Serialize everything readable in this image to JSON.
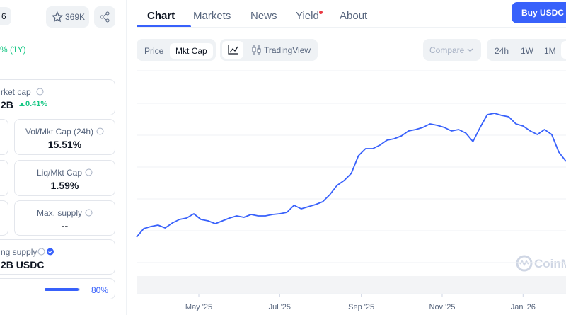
{
  "header": {
    "rank_partial": "6",
    "watchlist_count": "369K"
  },
  "left": {
    "change_period": "% (1Y)",
    "market_cap": {
      "label": "rket cap",
      "value": "2B",
      "change": "0.41%"
    },
    "stats": [
      {
        "label": "Vol/Mkt Cap (24h)",
        "value": "15.51%"
      },
      {
        "label": "Liq/Mkt Cap",
        "value": "1.59%"
      },
      {
        "label": "Max. supply",
        "value": "--"
      }
    ],
    "supply": {
      "label": "ng supply",
      "value": "2B USDC"
    },
    "progress": {
      "label": "80%"
    }
  },
  "tabs": [
    "Chart",
    "Markets",
    "News",
    "Yield",
    "About"
  ],
  "buy_button": "Buy USDC",
  "toolbar": {
    "metrics": [
      "Price",
      "Mkt Cap"
    ],
    "tradingview": "TradingView",
    "compare": "Compare",
    "ranges": [
      "24h",
      "1W",
      "1M"
    ]
  },
  "watermark": "CoinM",
  "chart_data": {
    "type": "line",
    "x": [
      0,
      1,
      2,
      3,
      4,
      5,
      6,
      7,
      8,
      9,
      10,
      11,
      12,
      13,
      14,
      15,
      16,
      17,
      18,
      19,
      20,
      21,
      22,
      23,
      24,
      25,
      26,
      27,
      28,
      29,
      30,
      31,
      32,
      33,
      34,
      35,
      36,
      37,
      38,
      39,
      40,
      41,
      42,
      43,
      44,
      45,
      46,
      47,
      48,
      49,
      50,
      51,
      52,
      53,
      54,
      55,
      56,
      57,
      58,
      59,
      60
    ],
    "series": [
      {
        "color": "#3861fb",
        "values": [
          80,
          92,
          95,
          97,
          93,
          100,
          105,
          107,
          113,
          105,
          103,
          99,
          103,
          107,
          110,
          108,
          112,
          110,
          110,
          112,
          113,
          115,
          125,
          120,
          123,
          126,
          130,
          140,
          153,
          160,
          170,
          195,
          205,
          205,
          210,
          217,
          219,
          223,
          230,
          232,
          235,
          240,
          238,
          235,
          230,
          232,
          227,
          215,
          235,
          253,
          255,
          252,
          250,
          240,
          237,
          230,
          225,
          232,
          225,
          200,
          187
        ]
      }
    ],
    "xlim": [
      0,
      60
    ],
    "ylim": [
      0,
      315
    ],
    "xticks": [
      {
        "value": 8.7,
        "label": "May '25"
      },
      {
        "value": 20,
        "label": "Jul '25"
      },
      {
        "value": 31.4,
        "label": "Sep '25"
      },
      {
        "value": 42.7,
        "label": "Nov '25"
      },
      {
        "value": 54,
        "label": "Jan '26"
      }
    ],
    "yticks": [
      44,
      89,
      134,
      179,
      224,
      269,
      315
    ],
    "grid": true
  }
}
